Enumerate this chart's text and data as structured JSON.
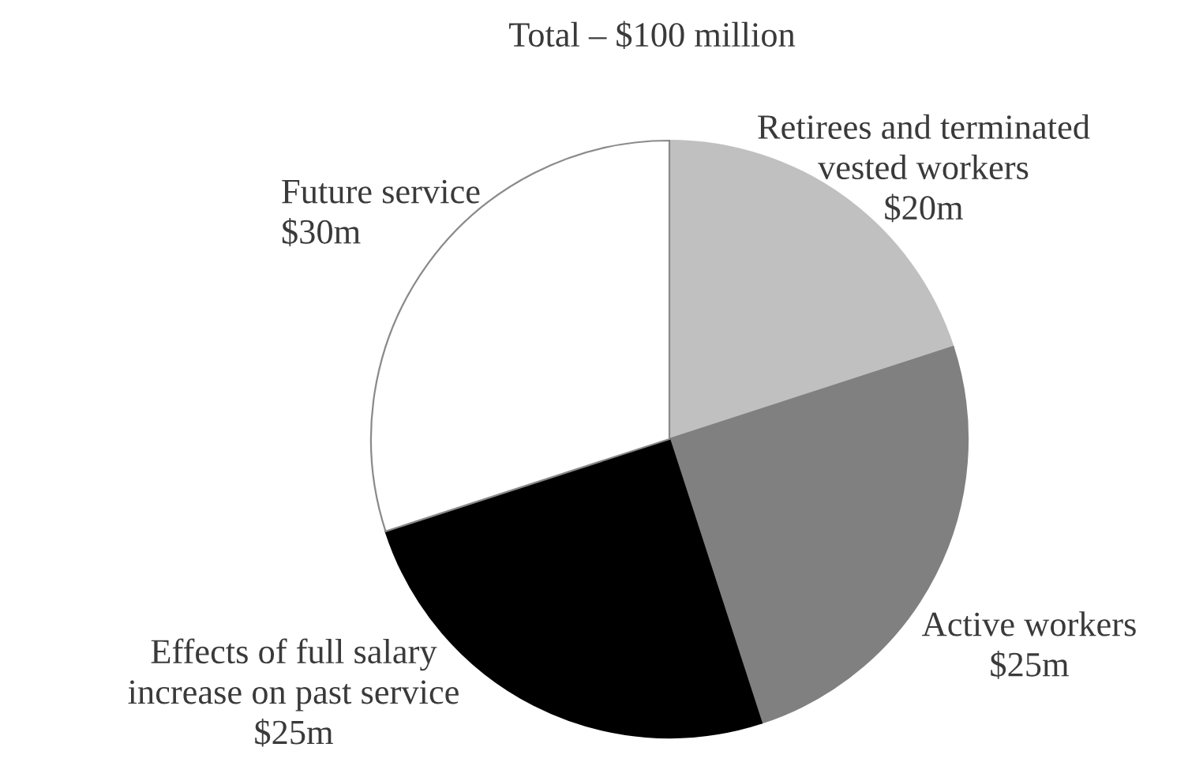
{
  "chart_data": {
    "type": "pie",
    "title": "Total – $100 million",
    "categories": [
      "Retirees and terminated\nvested workers",
      "Active workers",
      "Effects of full salary\nincrease on past service",
      "Future service"
    ],
    "values": [
      20,
      25,
      25,
      30
    ],
    "value_labels": [
      "$20m",
      "$25m",
      "$25m",
      "$30m"
    ],
    "colors": [
      "#c0c0c0",
      "#808080",
      "#000000",
      "#ffffff"
    ]
  }
}
